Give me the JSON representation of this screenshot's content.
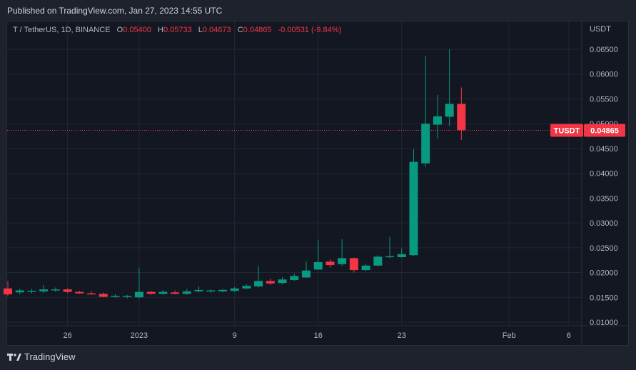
{
  "header": {
    "published": "Published on TradingView.com, Jan 27, 2023 14:55 UTC"
  },
  "legend": {
    "symbol": "T / TetherUS, 1D, BINANCE",
    "open_label": "O",
    "open": "0.05400",
    "high_label": "H",
    "high": "0.05733",
    "low_label": "L",
    "low": "0.04673",
    "close_label": "C",
    "close": "0.04865",
    "change": "-0.00531 (-9.84%)"
  },
  "footer": {
    "brand": "TradingView"
  },
  "colors": {
    "up": "#089981",
    "down": "#f23645",
    "grid": "#2a2e39",
    "bg": "#131722"
  },
  "chart_data": {
    "type": "candlestick",
    "symbol": "T / TetherUS",
    "interval": "1D",
    "exchange": "BINANCE",
    "currency_label": "USDT",
    "y_ticks": [
      "0.06500",
      "0.06000",
      "0.05500",
      "0.05000",
      "0.04500",
      "0.04000",
      "0.03500",
      "0.03000",
      "0.02500",
      "0.02000",
      "0.01500",
      "0.01000"
    ],
    "x_ticks": [
      "26",
      "2023",
      "9",
      "16",
      "23",
      "Feb",
      "6"
    ],
    "last_price": {
      "label": "TUSDT",
      "value": "0.04865"
    },
    "candles": [
      {
        "date": "2022-12-21",
        "o": 0.0168,
        "h": 0.0183,
        "l": 0.0152,
        "c": 0.0156
      },
      {
        "date": "2022-12-22",
        "o": 0.016,
        "h": 0.0167,
        "l": 0.0156,
        "c": 0.0164
      },
      {
        "date": "2022-12-23",
        "o": 0.0161,
        "h": 0.0167,
        "l": 0.0158,
        "c": 0.0163
      },
      {
        "date": "2022-12-24",
        "o": 0.0162,
        "h": 0.0175,
        "l": 0.0159,
        "c": 0.0166
      },
      {
        "date": "2022-12-25",
        "o": 0.0164,
        "h": 0.017,
        "l": 0.0161,
        "c": 0.0166
      },
      {
        "date": "2022-12-26",
        "o": 0.0166,
        "h": 0.0168,
        "l": 0.0159,
        "c": 0.0161
      },
      {
        "date": "2022-12-27",
        "o": 0.0161,
        "h": 0.0163,
        "l": 0.0157,
        "c": 0.0158
      },
      {
        "date": "2022-12-28",
        "o": 0.0158,
        "h": 0.0162,
        "l": 0.0155,
        "c": 0.0156
      },
      {
        "date": "2022-12-29",
        "o": 0.0157,
        "h": 0.016,
        "l": 0.015,
        "c": 0.0151
      },
      {
        "date": "2022-12-30",
        "o": 0.0151,
        "h": 0.0156,
        "l": 0.0149,
        "c": 0.0153
      },
      {
        "date": "2022-12-31",
        "o": 0.0151,
        "h": 0.0155,
        "l": 0.0148,
        "c": 0.0153
      },
      {
        "date": "2023-01-01",
        "o": 0.015,
        "h": 0.021,
        "l": 0.0148,
        "c": 0.0161
      },
      {
        "date": "2023-01-02",
        "o": 0.0161,
        "h": 0.0163,
        "l": 0.0155,
        "c": 0.0157
      },
      {
        "date": "2023-01-03",
        "o": 0.0157,
        "h": 0.0165,
        "l": 0.0155,
        "c": 0.0161
      },
      {
        "date": "2023-01-04",
        "o": 0.016,
        "h": 0.0164,
        "l": 0.0156,
        "c": 0.0157
      },
      {
        "date": "2023-01-05",
        "o": 0.0157,
        "h": 0.0167,
        "l": 0.0155,
        "c": 0.0162
      },
      {
        "date": "2023-01-06",
        "o": 0.0162,
        "h": 0.0172,
        "l": 0.016,
        "c": 0.0165
      },
      {
        "date": "2023-01-07",
        "o": 0.0162,
        "h": 0.0166,
        "l": 0.0159,
        "c": 0.0164
      },
      {
        "date": "2023-01-08",
        "o": 0.0162,
        "h": 0.0167,
        "l": 0.016,
        "c": 0.0165
      },
      {
        "date": "2023-01-09",
        "o": 0.0163,
        "h": 0.0171,
        "l": 0.0161,
        "c": 0.0168
      },
      {
        "date": "2023-01-10",
        "o": 0.0168,
        "h": 0.0176,
        "l": 0.0166,
        "c": 0.0173
      },
      {
        "date": "2023-01-11",
        "o": 0.0172,
        "h": 0.0213,
        "l": 0.017,
        "c": 0.0183
      },
      {
        "date": "2023-01-12",
        "o": 0.0183,
        "h": 0.0188,
        "l": 0.0175,
        "c": 0.0178
      },
      {
        "date": "2023-01-13",
        "o": 0.0179,
        "h": 0.0191,
        "l": 0.0176,
        "c": 0.0186
      },
      {
        "date": "2023-01-14",
        "o": 0.0185,
        "h": 0.0198,
        "l": 0.0183,
        "c": 0.0193
      },
      {
        "date": "2023-01-15",
        "o": 0.019,
        "h": 0.0222,
        "l": 0.0189,
        "c": 0.0204
      },
      {
        "date": "2023-01-16",
        "o": 0.0206,
        "h": 0.0266,
        "l": 0.0205,
        "c": 0.0221
      },
      {
        "date": "2023-01-17",
        "o": 0.0222,
        "h": 0.0227,
        "l": 0.021,
        "c": 0.0215
      },
      {
        "date": "2023-01-18",
        "o": 0.0217,
        "h": 0.0267,
        "l": 0.0213,
        "c": 0.0229
      },
      {
        "date": "2023-01-19",
        "o": 0.0229,
        "h": 0.023,
        "l": 0.02,
        "c": 0.0205
      },
      {
        "date": "2023-01-20",
        "o": 0.0205,
        "h": 0.0218,
        "l": 0.0203,
        "c": 0.0214
      },
      {
        "date": "2023-01-21",
        "o": 0.0214,
        "h": 0.0235,
        "l": 0.0212,
        "c": 0.0232
      },
      {
        "date": "2023-01-22",
        "o": 0.0231,
        "h": 0.0272,
        "l": 0.0229,
        "c": 0.0233
      },
      {
        "date": "2023-01-23",
        "o": 0.0231,
        "h": 0.0249,
        "l": 0.023,
        "c": 0.0237
      },
      {
        "date": "2023-01-24",
        "o": 0.0235,
        "h": 0.0449,
        "l": 0.0233,
        "c": 0.0423
      },
      {
        "date": "2023-01-25",
        "o": 0.042,
        "h": 0.0636,
        "l": 0.0413,
        "c": 0.05
      },
      {
        "date": "2023-01-26",
        "o": 0.0498,
        "h": 0.0558,
        "l": 0.047,
        "c": 0.0515
      },
      {
        "date": "2023-01-27",
        "o": 0.0514,
        "h": 0.065,
        "l": 0.0495,
        "c": 0.054
      },
      {
        "date": "2023-01-28",
        "o": 0.054,
        "h": 0.0573,
        "l": 0.0467,
        "c": 0.0487
      }
    ]
  }
}
